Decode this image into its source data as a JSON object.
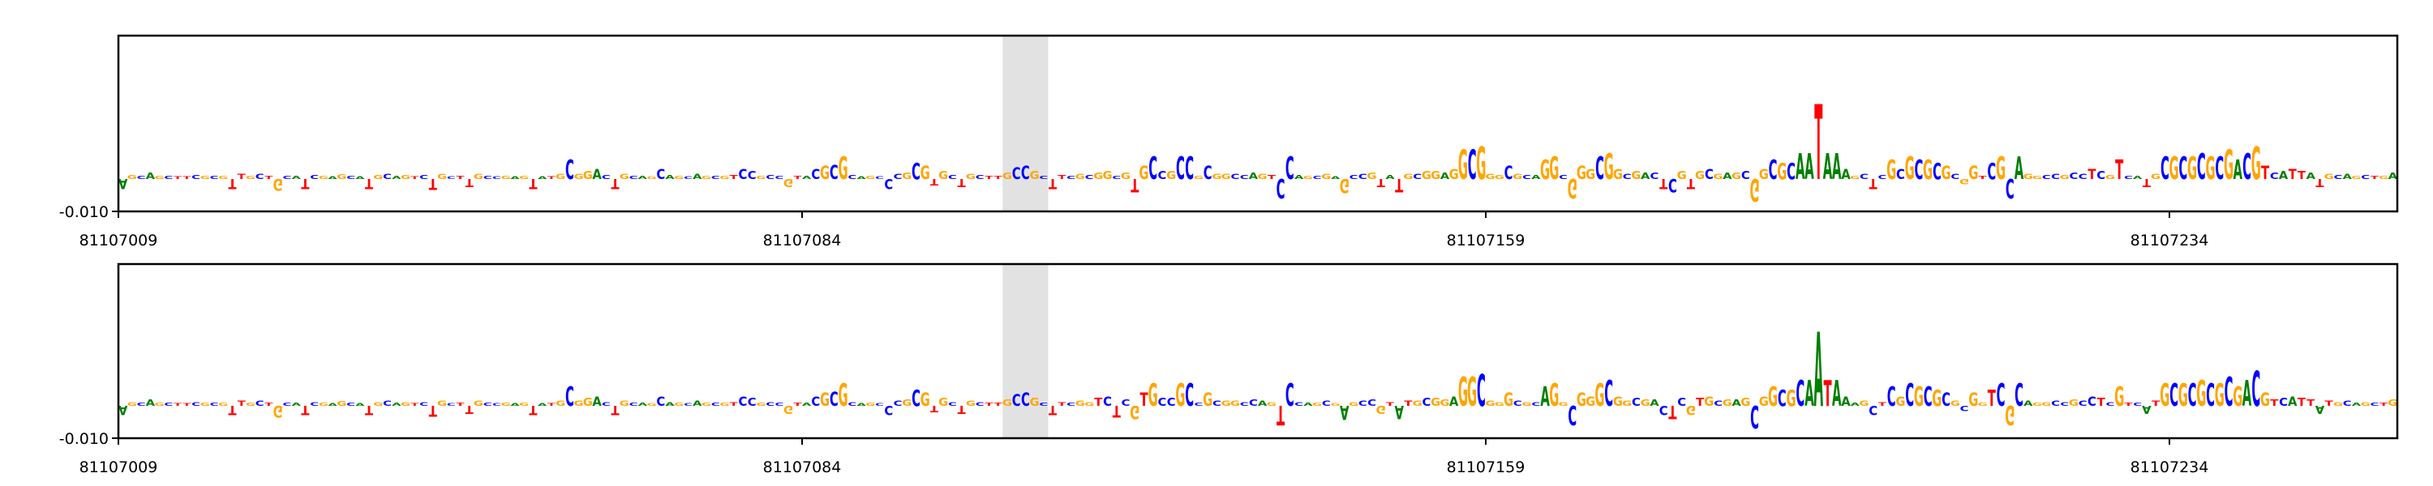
{
  "chart_data": [
    {
      "type": "logo",
      "sequence": "AGCAGCTTCGCGTTGCTGCATCGAGCATGCAGTCTGCTTGCCGAGTATGCGGACTGCAGCAGCAGCGTCCGCCGTACGCGCAGCCCGCGTGCTGCTTGCCGCTTCGCGGCGTGCCGCCGCGGCCAGTCCAGCGAGCCGTATGCGGAGGCGGGCGCAGGCGGGCGGCGACTCGTGCGAGCGGCGCAATAAAGCTCGCGCGCGCGGTCGCAGGCCGCCTCGTCATGCGCGCGCGACGTCATTATGCAGCTGA",
      "values": [
        -0.003,
        0.0012,
        0.001,
        0.002,
        0.001,
        0.001,
        0.0008,
        0.0008,
        0.0012,
        0.001,
        0.001,
        0.001,
        -0.003,
        0.0016,
        0.001,
        0.0016,
        0.001,
        -0.0036,
        0.001,
        0.001,
        -0.003,
        0.0012,
        0.001,
        0.0008,
        0.0014,
        0.001,
        0.0008,
        -0.003,
        0.0012,
        0.0016,
        0.001,
        0.0012,
        0.0008,
        0.0012,
        -0.0034,
        0.0016,
        0.0008,
        0.001,
        -0.0024,
        0.0016,
        0.001,
        0.0008,
        0.001,
        0.0008,
        0.001,
        -0.003,
        0.0008,
        0.0008,
        0.0016,
        0.006,
        0.0016,
        0.0024,
        0.003,
        0.0012,
        -0.003,
        0.0016,
        0.001,
        0.001,
        0.0008,
        0.003,
        0.0012,
        0.001,
        0.0008,
        0.0016,
        0.001,
        0.001,
        0.001,
        0.0012,
        0.003,
        0.0024,
        0.001,
        0.0012,
        0.001,
        -0.0024,
        0.001,
        0.001,
        0.003,
        0.004,
        0.0044,
        0.007,
        0.0012,
        0.0008,
        0.001,
        0.0008,
        -0.003,
        0.0016,
        0.002,
        0.005,
        0.004,
        -0.002,
        0.0024,
        0.0012,
        -0.0024,
        0.0016,
        0.0012,
        0.001,
        0.001,
        0.002,
        0.0036,
        0.004,
        0.0024,
        0.001,
        -0.003,
        0.0012,
        0.001,
        0.0016,
        0.0012,
        0.002,
        0.0024,
        0.001,
        0.002,
        -0.004,
        0.004,
        0.007,
        0.0024,
        0.0024,
        0.007,
        0.007,
        0.001,
        0.004,
        0.0016,
        0.0016,
        0.0016,
        0.0012,
        0.002,
        0.0016,
        0.0012,
        -0.006,
        0.007,
        0.0012,
        0.001,
        0.001,
        0.0016,
        0.0008,
        -0.0044,
        0.0012,
        0.0016,
        0.002,
        -0.0024,
        0.0012,
        -0.004,
        0.0016,
        0.0016,
        0.0024,
        0.0024,
        0.002,
        0.003,
        0.009,
        0.009,
        0.01,
        0.0016,
        0.0012,
        0.004,
        0.0016,
        0.0012,
        0.0012,
        0.006,
        0.007,
        0.0012,
        -0.006,
        0.004,
        0.003,
        0.007,
        0.008,
        0.003,
        0.0016,
        0.0024,
        0.002,
        0.002,
        -0.003,
        -0.004,
        0.0024,
        -0.003,
        0.0024,
        0.003,
        0.0016,
        0.002,
        0.002,
        0.0024,
        -0.007,
        0.003,
        0.006,
        0.005,
        0.005,
        0.008,
        0.008,
        0.023,
        0.008,
        0.008,
        0.003,
        0.001,
        0.0016,
        -0.003,
        0.0012,
        0.006,
        0.003,
        0.007,
        0.006,
        0.006,
        0.005,
        0.004,
        0.0016,
        -0.0016,
        0.004,
        0.001,
        0.005,
        0.007,
        -0.006,
        0.007,
        0.0016,
        0.001,
        0.0012,
        0.0016,
        0.0012,
        0.002,
        0.0016,
        0.003,
        0.0024,
        0.0012,
        0.006,
        0.001,
        0.001,
        -0.0024,
        0.0016,
        0.007,
        0.007,
        0.007,
        0.007,
        0.008,
        0.007,
        0.007,
        0.009,
        0.006,
        0.008,
        0.01,
        0.004,
        0.002,
        0.0024,
        0.003,
        0.0024,
        0.002,
        -0.0024,
        0.0016,
        0.0012,
        0.0016,
        0.001,
        0.0012,
        0.001,
        0.001,
        0.002
      ],
      "colors": {
        "A": "#008000",
        "C": "#0000ff",
        "G": "#ffa500",
        "T": "#ff0000"
      },
      "highlight": [
        81107106,
        81107111
      ],
      "xlim": [
        81107009,
        81107259
      ],
      "xticks": [
        81107009,
        81107084,
        81107159,
        81107234
      ],
      "ylim": [
        -0.01,
        0.044
      ],
      "yticks": [
        {
          "value": -0.01,
          "label": "-0.010"
        }
      ]
    },
    {
      "type": "logo",
      "sequence": "AGCAGCTTCGCGTTGCTGCATCGAGCATGCAGTCTGCTTGCCGAGTATGCGGACTGCAGCAGCAGCGTCCGCCGTACGCGCAGCCCGCGTGCTGCTTGCCGCTTCGGTCTCGTGCCGCCGCGGCCAGTCCAGCGAGCCGTATGCGGAGGCGGGCGCAGGCGGGCGGCGACTCGTGCGAGCGGCGCAATAAAGCTCGCGCGCGCGGTCGCAGGCCGCCTCGTCATGCGCGCGCGACGTCATTATGCAGCTGA",
      "values": [
        -0.003,
        0.0012,
        0.001,
        0.002,
        0.001,
        0.001,
        0.0008,
        0.0008,
        0.0012,
        0.001,
        0.001,
        0.001,
        -0.003,
        0.0016,
        0.001,
        0.0016,
        0.001,
        -0.0036,
        0.001,
        0.001,
        -0.003,
        0.0012,
        0.001,
        0.0008,
        0.0014,
        0.001,
        0.0008,
        -0.003,
        0.0012,
        0.0016,
        0.001,
        0.0012,
        0.0008,
        0.0012,
        -0.0034,
        0.0016,
        0.0008,
        0.001,
        -0.0024,
        0.0016,
        0.001,
        0.0008,
        0.001,
        0.0008,
        0.001,
        -0.003,
        0.0008,
        0.0008,
        0.0016,
        0.006,
        0.0016,
        0.0024,
        0.003,
        0.0012,
        -0.003,
        0.0016,
        0.001,
        0.001,
        0.0008,
        0.003,
        0.0012,
        0.001,
        0.0008,
        0.0016,
        0.001,
        0.001,
        0.001,
        0.0012,
        0.003,
        0.0024,
        0.001,
        0.0012,
        0.001,
        -0.0024,
        0.001,
        0.001,
        0.003,
        0.004,
        0.0044,
        0.007,
        0.0012,
        0.0008,
        0.001,
        0.0008,
        -0.003,
        0.0016,
        0.002,
        0.005,
        0.004,
        -0.002,
        0.0024,
        0.0012,
        -0.0024,
        0.0016,
        0.0012,
        0.001,
        0.001,
        0.002,
        0.0036,
        0.004,
        0.0024,
        0.001,
        -0.003,
        0.0012,
        0.001,
        0.0016,
        0.0012,
        0.0024,
        0.003,
        -0.0036,
        0.002,
        -0.004,
        0.004,
        0.007,
        0.0024,
        0.0024,
        0.007,
        0.007,
        0.001,
        0.004,
        0.0016,
        0.0016,
        0.0016,
        0.0012,
        0.002,
        0.0016,
        0.0012,
        -0.006,
        0.007,
        0.0012,
        0.001,
        0.001,
        0.0016,
        0.0008,
        -0.0044,
        0.0012,
        0.0016,
        0.002,
        -0.0024,
        0.0012,
        -0.004,
        0.0016,
        0.0016,
        0.0024,
        0.0024,
        0.002,
        0.003,
        0.009,
        0.009,
        0.01,
        0.0016,
        0.0012,
        0.004,
        0.0016,
        0.0012,
        0.0012,
        0.006,
        0.007,
        0.0012,
        -0.006,
        0.004,
        0.003,
        0.007,
        0.008,
        0.003,
        0.0016,
        0.0024,
        0.002,
        0.002,
        -0.003,
        -0.004,
        0.0024,
        -0.003,
        0.0024,
        0.003,
        0.0016,
        0.002,
        0.002,
        0.0024,
        -0.007,
        0.003,
        0.006,
        0.005,
        0.005,
        0.008,
        0.008,
        0.023,
        0.008,
        0.008,
        0.003,
        0.001,
        0.0016,
        -0.003,
        0.0012,
        0.006,
        0.003,
        0.007,
        0.006,
        0.006,
        0.005,
        0.004,
        0.0016,
        -0.0016,
        0.004,
        0.001,
        0.005,
        0.007,
        -0.006,
        0.007,
        0.0016,
        0.001,
        0.0012,
        0.0016,
        0.0012,
        0.002,
        0.0016,
        0.003,
        0.0024,
        0.0012,
        0.006,
        0.001,
        0.001,
        -0.0024,
        0.0016,
        0.007,
        0.007,
        0.007,
        0.007,
        0.008,
        0.007,
        0.007,
        0.009,
        0.006,
        0.008,
        0.011,
        0.004,
        0.002,
        0.0024,
        0.003,
        0.0024,
        0.002,
        -0.0024,
        0.0016,
        0.0012,
        0.0016,
        0.001,
        0.0012,
        0.001,
        0.001,
        0.002
      ],
      "colors": {
        "A": "#008000",
        "C": "#0000ff",
        "G": "#ffa500",
        "T": "#ff0000"
      },
      "highlight": [
        81107106,
        81107111
      ],
      "xlim": [
        81107009,
        81107259
      ],
      "xticks": [
        81107009,
        81107084,
        81107159,
        81107234
      ],
      "ylim": [
        -0.01,
        0.044
      ],
      "yticks": [
        {
          "value": -0.01,
          "label": "-0.010"
        }
      ]
    }
  ]
}
